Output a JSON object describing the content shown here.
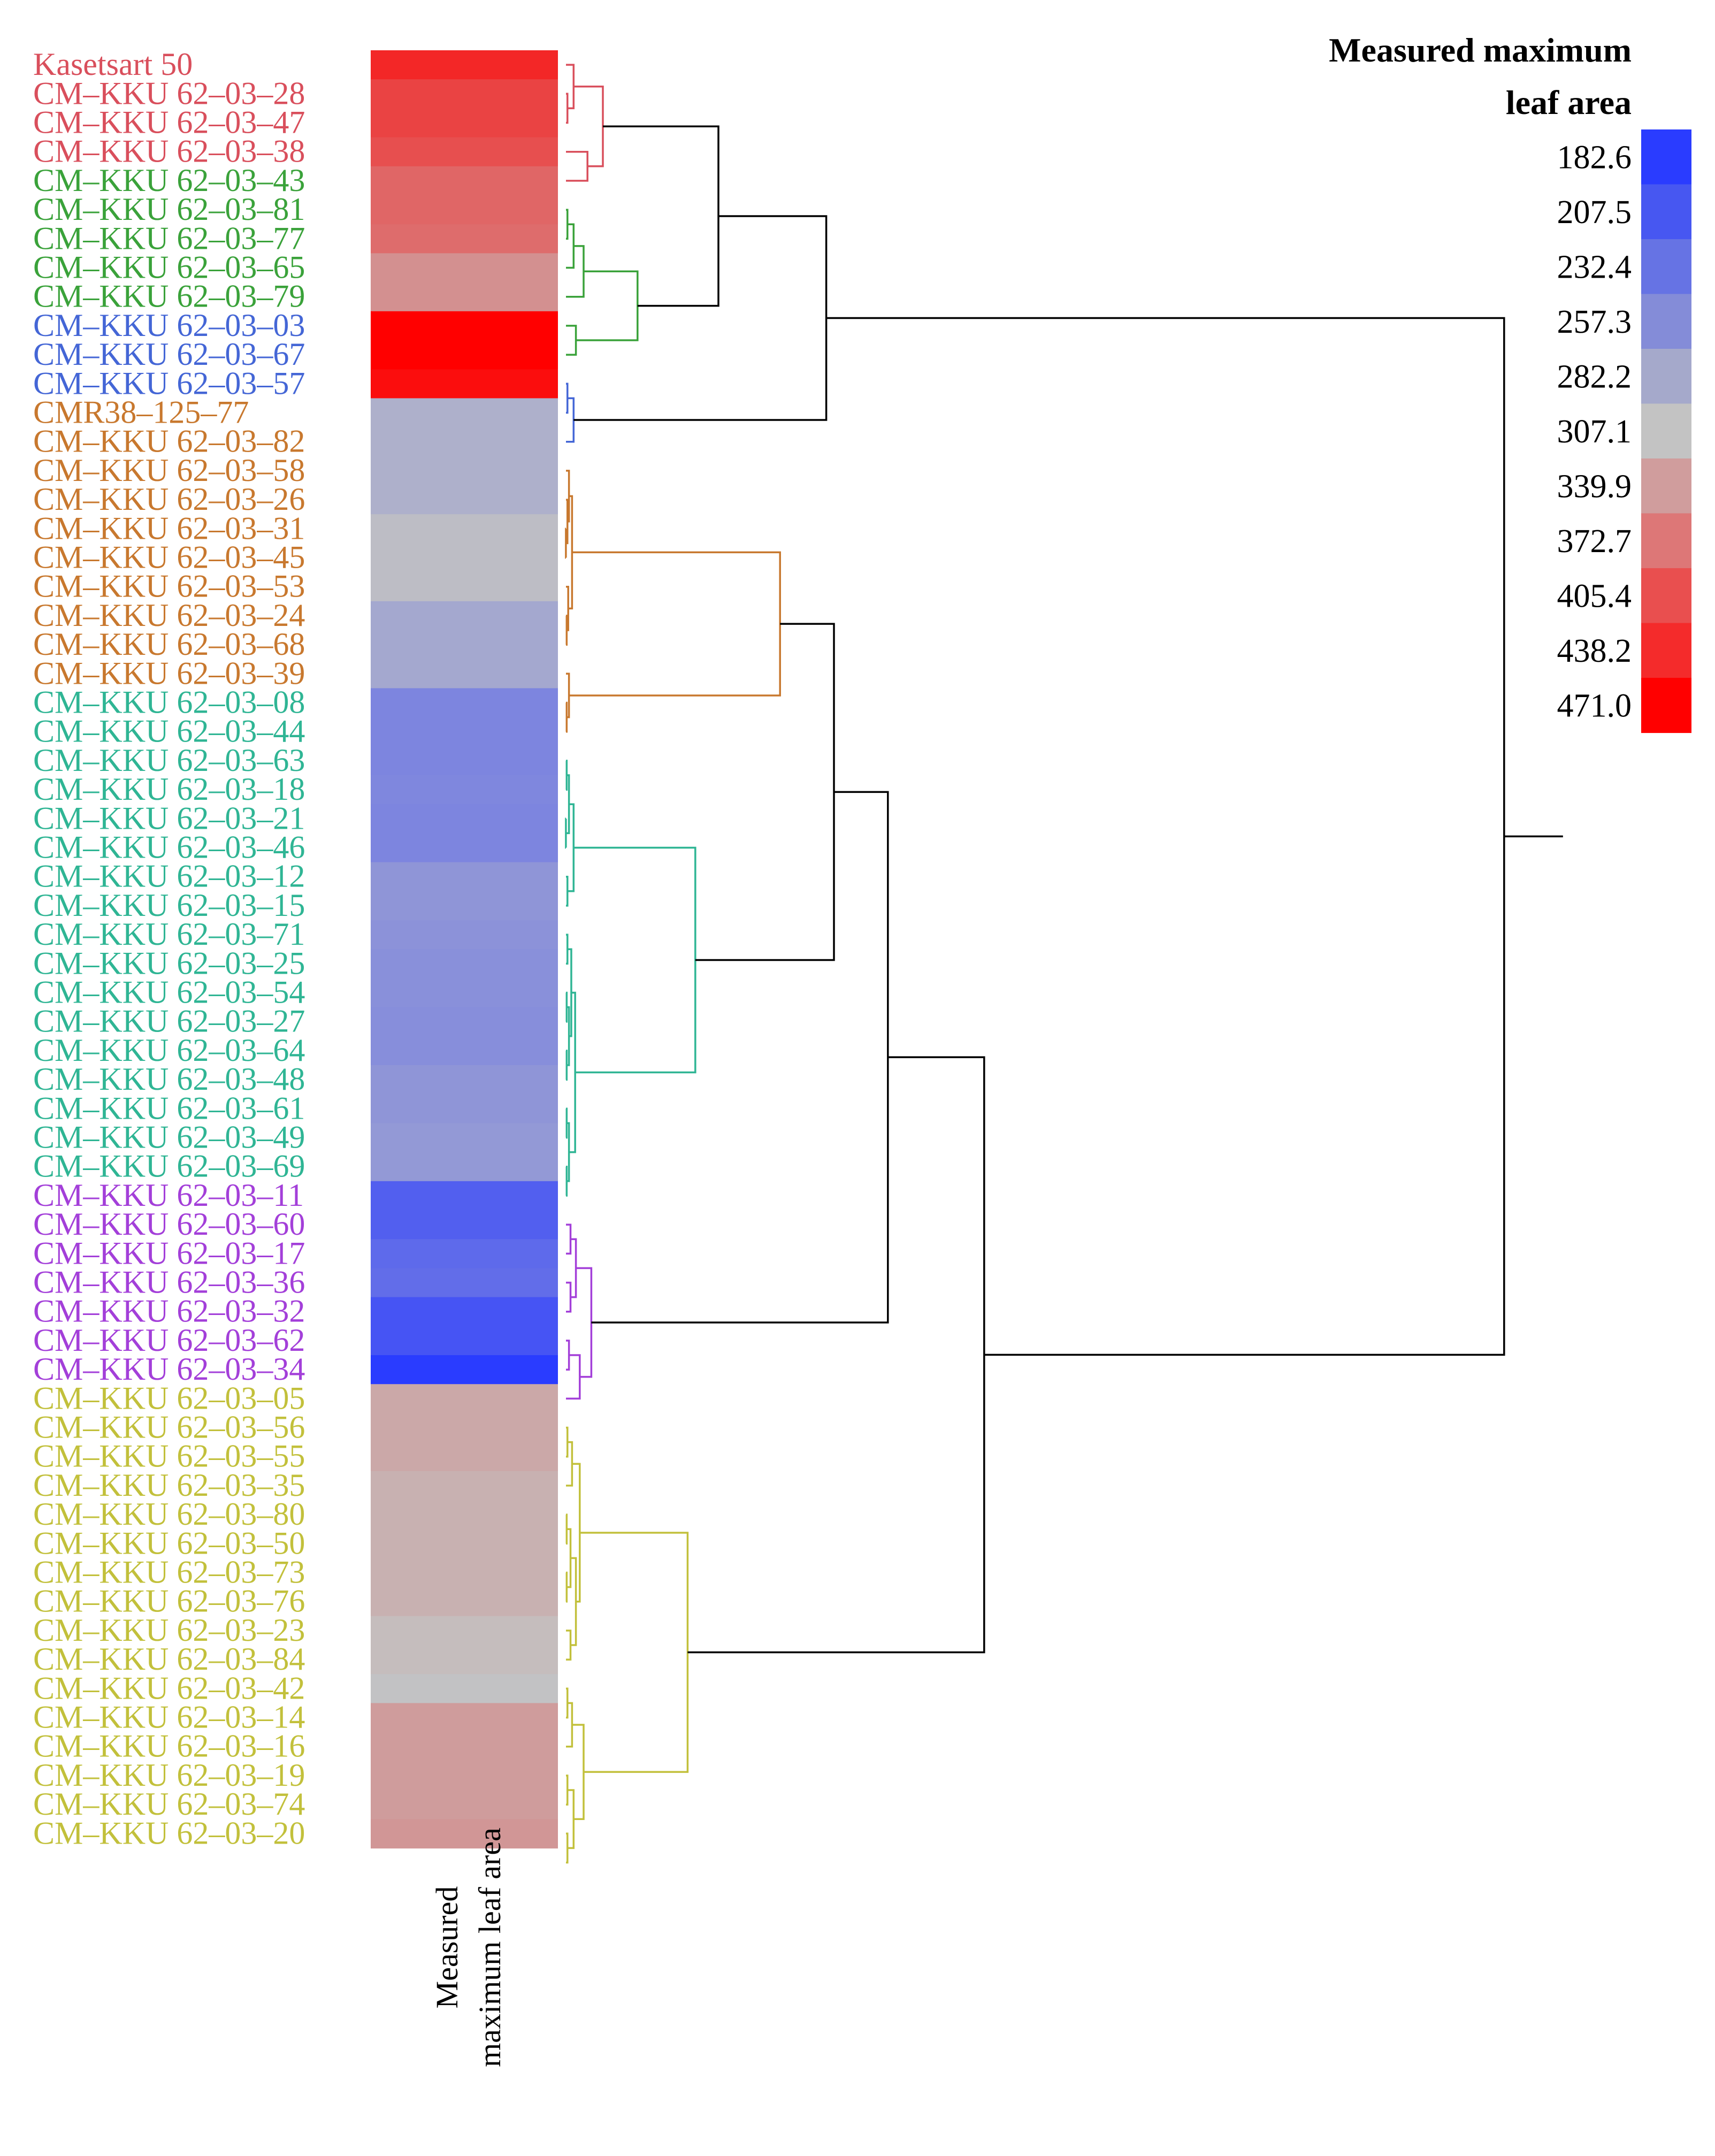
{
  "chart_data": {
    "type": "heatmap",
    "title": "",
    "column_labels": [
      "Measured maximum leaf area"
    ],
    "column_label_lines": [
      "Measured",
      "maximum leaf area"
    ],
    "legend": {
      "title_lines": [
        "Measured maximum",
        "leaf area"
      ],
      "ticks": [
        182.6,
        207.5,
        232.4,
        257.3,
        282.2,
        307.1,
        339.9,
        372.7,
        405.4,
        438.2,
        471.0
      ],
      "tick_labels": [
        "182.6",
        "207.5",
        "232.4",
        "257.3",
        "282.2",
        "307.1",
        "339.9",
        "372.7",
        "405.4",
        "438.2",
        "471.0"
      ],
      "colors": [
        "#2a3cff",
        "#4757f1",
        "#6673e4",
        "#848cd8",
        "#a5a9cb",
        "#c3c3c3",
        "#d09d9d",
        "#dd7777",
        "#e94f4f",
        "#f42b2b",
        "#ff0000"
      ]
    },
    "cluster_colors": {
      "c1": "#d94f5c",
      "c2": "#3aa23a",
      "c3": "#4466d6",
      "c4": "#c8782e",
      "c5": "#2fb594",
      "c6": "#a33fd9",
      "c7": "#c2c03b",
      "root": "#000000"
    },
    "rows": [
      {
        "label": "Kasetsart 50",
        "cluster": "c1",
        "value": 438
      },
      {
        "label": "CM–KKU 62–03–28",
        "cluster": "c1",
        "value": 415
      },
      {
        "label": "CM–KKU 62–03–47",
        "cluster": "c1",
        "value": 415
      },
      {
        "label": "CM–KKU 62–03–38",
        "cluster": "c1",
        "value": 405
      },
      {
        "label": "CM–KKU 62–03–43",
        "cluster": "c2",
        "value": 385
      },
      {
        "label": "CM–KKU 62–03–81",
        "cluster": "c2",
        "value": 385
      },
      {
        "label": "CM–KKU 62–03–77",
        "cluster": "c2",
        "value": 380
      },
      {
        "label": "CM–KKU 62–03–65",
        "cluster": "c2",
        "value": 350
      },
      {
        "label": "CM–KKU 62–03–79",
        "cluster": "c2",
        "value": 350
      },
      {
        "label": "CM–KKU 62–03–03",
        "cluster": "c3",
        "value": 471
      },
      {
        "label": "CM–KKU 62–03–67",
        "cluster": "c3",
        "value": 471
      },
      {
        "label": "CM–KKU 62–03–57",
        "cluster": "c3",
        "value": 460
      },
      {
        "label": "CMR38–125–77",
        "cluster": "c4",
        "value": 290
      },
      {
        "label": "CM–KKU 62–03–82",
        "cluster": "c4",
        "value": 290
      },
      {
        "label": "CM–KKU 62–03–58",
        "cluster": "c4",
        "value": 290
      },
      {
        "label": "CM–KKU 62–03–26",
        "cluster": "c4",
        "value": 290
      },
      {
        "label": "CM–KKU 62–03–31",
        "cluster": "c4",
        "value": 302
      },
      {
        "label": "CM–KKU 62–03–45",
        "cluster": "c4",
        "value": 302
      },
      {
        "label": "CM–KKU 62–03–53",
        "cluster": "c4",
        "value": 302
      },
      {
        "label": "CM–KKU 62–03–24",
        "cluster": "c4",
        "value": 282
      },
      {
        "label": "CM–KKU 62–03–68",
        "cluster": "c4",
        "value": 282
      },
      {
        "label": "CM–KKU 62–03–39",
        "cluster": "c4",
        "value": 282
      },
      {
        "label": "CM–KKU 62–03–08",
        "cluster": "c5",
        "value": 250
      },
      {
        "label": "CM–KKU 62–03–44",
        "cluster": "c5",
        "value": 250
      },
      {
        "label": "CM–KKU 62–03–63",
        "cluster": "c5",
        "value": 250
      },
      {
        "label": "CM–KKU 62–03–18",
        "cluster": "c5",
        "value": 252
      },
      {
        "label": "CM–KKU 62–03–21",
        "cluster": "c5",
        "value": 250
      },
      {
        "label": "CM–KKU 62–03–46",
        "cluster": "c5",
        "value": 250
      },
      {
        "label": "CM–KKU 62–03–12",
        "cluster": "c5",
        "value": 265
      },
      {
        "label": "CM–KKU 62–03–15",
        "cluster": "c5",
        "value": 265
      },
      {
        "label": "CM–KKU 62–03–71",
        "cluster": "c5",
        "value": 262
      },
      {
        "label": "CM–KKU 62–03–25",
        "cluster": "c5",
        "value": 260
      },
      {
        "label": "CM–KKU 62–03–54",
        "cluster": "c5",
        "value": 260
      },
      {
        "label": "CM–KKU 62–03–27",
        "cluster": "c5",
        "value": 258
      },
      {
        "label": "CM–KKU 62–03–64",
        "cluster": "c5",
        "value": 258
      },
      {
        "label": "CM–KKU 62–03–48",
        "cluster": "c5",
        "value": 265
      },
      {
        "label": "CM–KKU 62–03–61",
        "cluster": "c5",
        "value": 265
      },
      {
        "label": "CM–KKU 62–03–49",
        "cluster": "c5",
        "value": 268
      },
      {
        "label": "CM–KKU 62–03–69",
        "cluster": "c5",
        "value": 268
      },
      {
        "label": "CM–KKU 62–03–11",
        "cluster": "c6",
        "value": 215
      },
      {
        "label": "CM–KKU 62–03–60",
        "cluster": "c6",
        "value": 215
      },
      {
        "label": "CM–KKU 62–03–17",
        "cluster": "c6",
        "value": 225
      },
      {
        "label": "CM–KKU 62–03–36",
        "cluster": "c6",
        "value": 228
      },
      {
        "label": "CM–KKU 62–03–32",
        "cluster": "c6",
        "value": 205
      },
      {
        "label": "CM–KKU 62–03–62",
        "cluster": "c6",
        "value": 205
      },
      {
        "label": "CM–KKU 62–03–34",
        "cluster": "c6",
        "value": 183
      },
      {
        "label": "CM–KKU 62–03–05",
        "cluster": "c7",
        "value": 330
      },
      {
        "label": "CM–KKU 62–03–56",
        "cluster": "c7",
        "value": 330
      },
      {
        "label": "CM–KKU 62–03–55",
        "cluster": "c7",
        "value": 330
      },
      {
        "label": "CM–KKU 62–03–35",
        "cluster": "c7",
        "value": 322
      },
      {
        "label": "CM–KKU 62–03–80",
        "cluster": "c7",
        "value": 322
      },
      {
        "label": "CM–KKU 62–03–50",
        "cluster": "c7",
        "value": 322
      },
      {
        "label": "CM–KKU 62–03–73",
        "cluster": "c7",
        "value": 322
      },
      {
        "label": "CM–KKU 62–03–76",
        "cluster": "c7",
        "value": 322
      },
      {
        "label": "CM–KKU 62–03–23",
        "cluster": "c7",
        "value": 312
      },
      {
        "label": "CM–KKU 62–03–84",
        "cluster": "c7",
        "value": 312
      },
      {
        "label": "CM–KKU 62–03–42",
        "cluster": "c7",
        "value": 306
      },
      {
        "label": "CM–KKU 62–03–14",
        "cluster": "c7",
        "value": 340
      },
      {
        "label": "CM–KKU 62–03–16",
        "cluster": "c7",
        "value": 340
      },
      {
        "label": "CM–KKU 62–03–19",
        "cluster": "c7",
        "value": 340
      },
      {
        "label": "CM–KKU 62–03–74",
        "cluster": "c7",
        "value": 340
      },
      {
        "label": "CM–KKU 62–03–20",
        "cluster": "c7",
        "value": 345
      }
    ]
  }
}
